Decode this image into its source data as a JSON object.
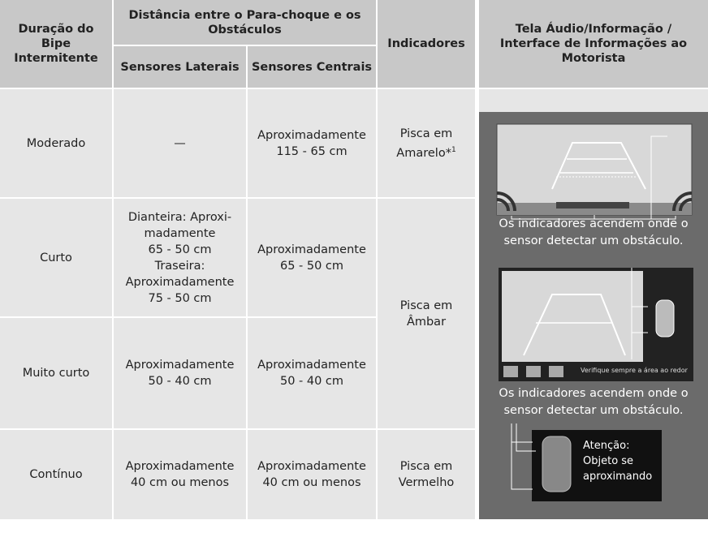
{
  "header": {
    "duration": "Duração do Bipe Intermitente",
    "distance": "Distância entre o Para-choque e os Obstáculos",
    "side": "Sensores Laterais",
    "center": "Sensores Centrais",
    "indicators": "Indicadores",
    "display": "Tela Áudio/Informação / Interface de Informações ao Motorista"
  },
  "rows": [
    {
      "duration": "Moderado",
      "side": [
        "—"
      ],
      "center": [
        "Aproximadamente",
        "115 - 65 cm"
      ]
    },
    {
      "duration": "Curto",
      "side": [
        "Dianteira: Aproxi-",
        "madamente",
        "65 - 50 cm",
        "Traseira:",
        "Aproximadamente",
        "75 - 50 cm"
      ],
      "center": [
        "Aproximadamente",
        "65 - 50 cm"
      ]
    },
    {
      "duration": "Muito curto",
      "side": [
        "Aproximadamente",
        "50 - 40 cm"
      ],
      "center": [
        "Aproximadamente",
        "50 - 40 cm"
      ]
    },
    {
      "duration": "Contínuo",
      "side": [
        "Aproximadamente",
        "40 cm ou menos"
      ],
      "center": [
        "Aproximadamente",
        "40 cm ou menos"
      ]
    }
  ],
  "indicators": [
    {
      "lines": [
        "Pisca em",
        "Amarelo*"
      ],
      "note": "1"
    },
    {
      "lines": [
        "Pisca em",
        "Âmbar"
      ]
    },
    {
      "lines": [
        "Pisca em",
        "Vermelho"
      ]
    }
  ],
  "display": {
    "caption1": "Os indicadores acendem onde o sensor detectar um obstáculo.",
    "screen2_text": "Verifique sempre a área ao redor",
    "caption2": "Os indicadores acendem onde o sensor detectar um obstáculo.",
    "warning": [
      "Atenção:",
      "Objeto se",
      "aproximando"
    ]
  }
}
